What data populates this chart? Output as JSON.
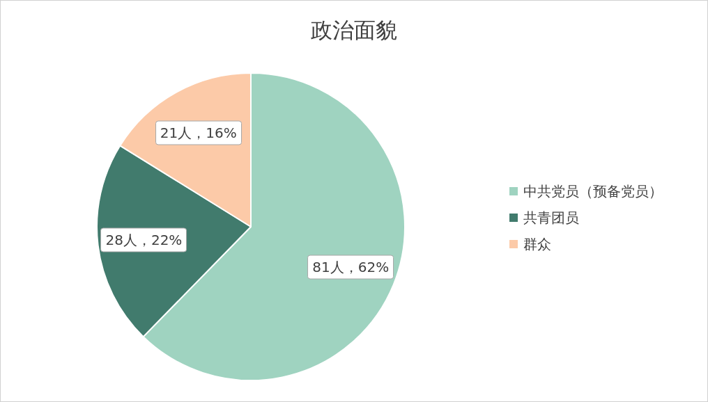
{
  "chart_data": {
    "type": "pie",
    "title": "政治面貌",
    "categories": [
      "中共党员（预备党员）",
      "共青团员",
      "群众"
    ],
    "values": [
      81,
      28,
      21
    ],
    "colors": [
      "#9fd3c0",
      "#417b6d",
      "#fccaa8"
    ],
    "value_labels": [
      "81人，62%",
      "28人，22%",
      "21人，16%"
    ],
    "legend": "right"
  }
}
